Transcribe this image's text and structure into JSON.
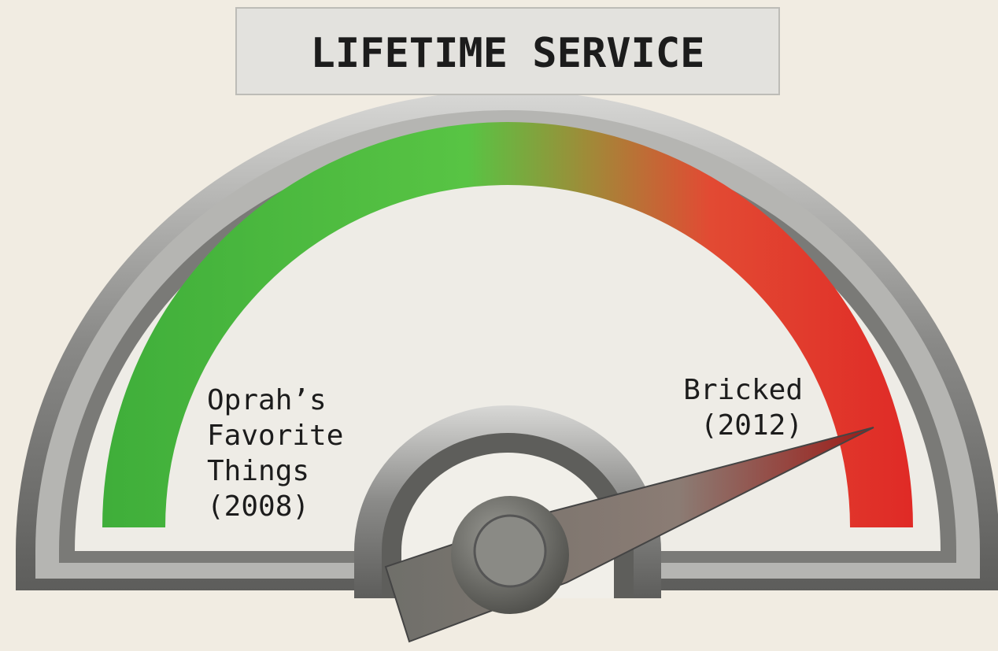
{
  "title": "LIFETIME SERVICE",
  "start_label": [
    "Oprah’s",
    "Favorite",
    "Things",
    "(2008)"
  ],
  "end_label": [
    "Bricked",
    "(2012)"
  ]
}
